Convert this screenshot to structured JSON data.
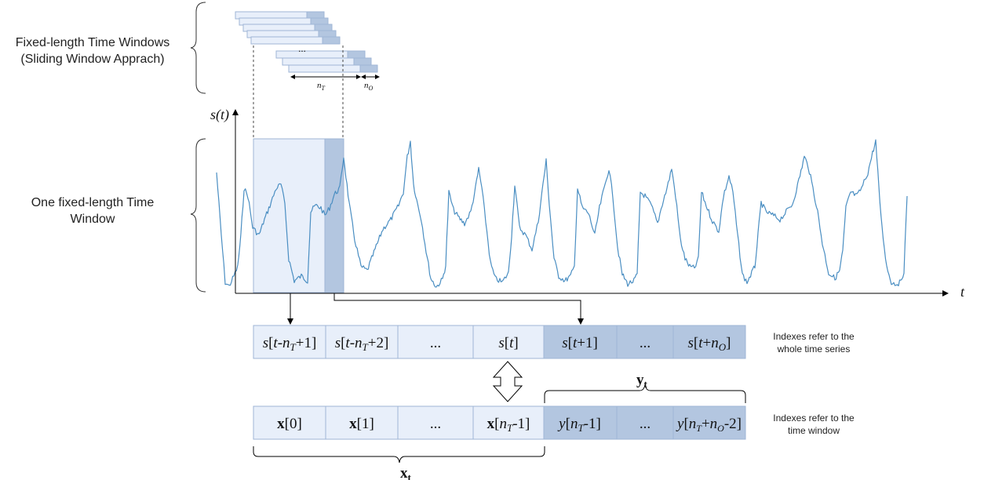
{
  "labels": {
    "fixed_windows_line1": "Fixed-length Time Windows",
    "fixed_windows_line2": "(Sliding Window Apprach)",
    "one_window_line1": "One fixed-length Time",
    "one_window_line2": "Window",
    "ellipsis": "...",
    "n_t": "n",
    "n_t_sub": "T",
    "n_o": "n",
    "n_o_sub": "O"
  },
  "axes": {
    "y_label": "s(t)",
    "x_label": "t"
  },
  "top_row": {
    "cells": [
      "s[t-nT+1]",
      "s[t-nT+2]",
      "...",
      "s[t]",
      "s[t+1]",
      "...",
      "s[t+nO]"
    ],
    "note_line1": "Indexes refer to the",
    "note_line2": "whole time series"
  },
  "bottom_row": {
    "cells": [
      "x[0]",
      "x[1]",
      "...",
      "x[nT-1]",
      "y[nT-1]",
      "...",
      "y[nT+nO-2]"
    ],
    "note_line1": "Indexes refer to the",
    "note_line2": "time window"
  },
  "brace_labels": {
    "y": "y",
    "y_sub": "t",
    "x": "x",
    "x_sub": "t"
  },
  "colors": {
    "window_light": "#e8effa",
    "window_dark": "#b3c6e0",
    "signal": "#4a8ec2",
    "border": "#9fb6d6"
  }
}
